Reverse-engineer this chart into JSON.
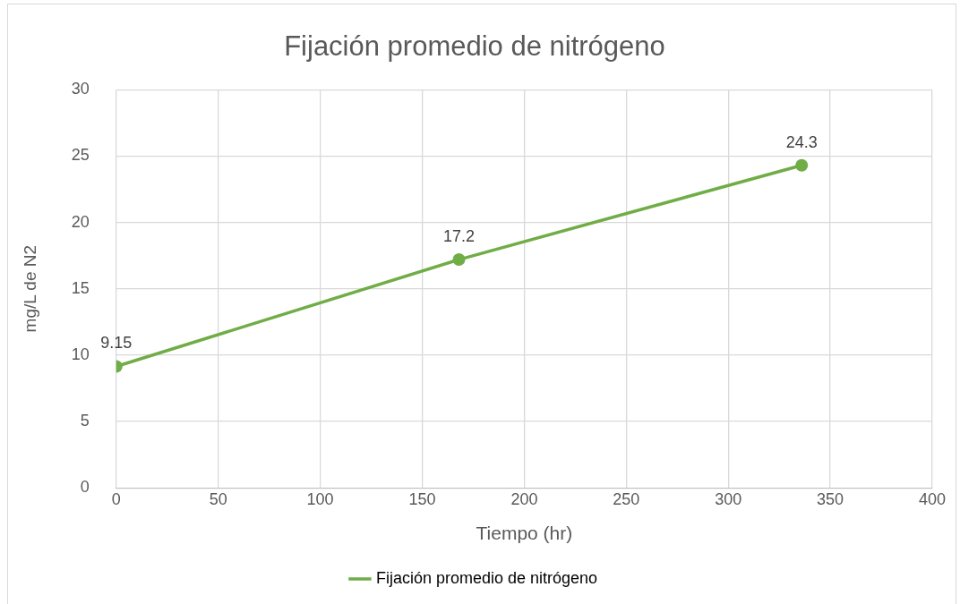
{
  "chart_data": {
    "type": "line",
    "title": "Fijación promedio de nitrógeno",
    "xlabel": "Tiempo (hr)",
    "ylabel": "mg/L de N2",
    "x": [
      0,
      168,
      336
    ],
    "series": [
      {
        "name": "Fijación promedio de nitrógeno",
        "color": "#70ad47",
        "values": [
          9.15,
          17.2,
          24.3
        ]
      }
    ],
    "xlim": [
      0,
      400
    ],
    "xticks": [
      0,
      50,
      100,
      150,
      200,
      250,
      300,
      350,
      400
    ],
    "ylim": [
      0,
      30
    ],
    "yticks": [
      0,
      5,
      10,
      15,
      20,
      25,
      30
    ],
    "grid": true,
    "legend": "bottom",
    "marker": "circle",
    "line_style": "solid",
    "data_labels": true
  }
}
